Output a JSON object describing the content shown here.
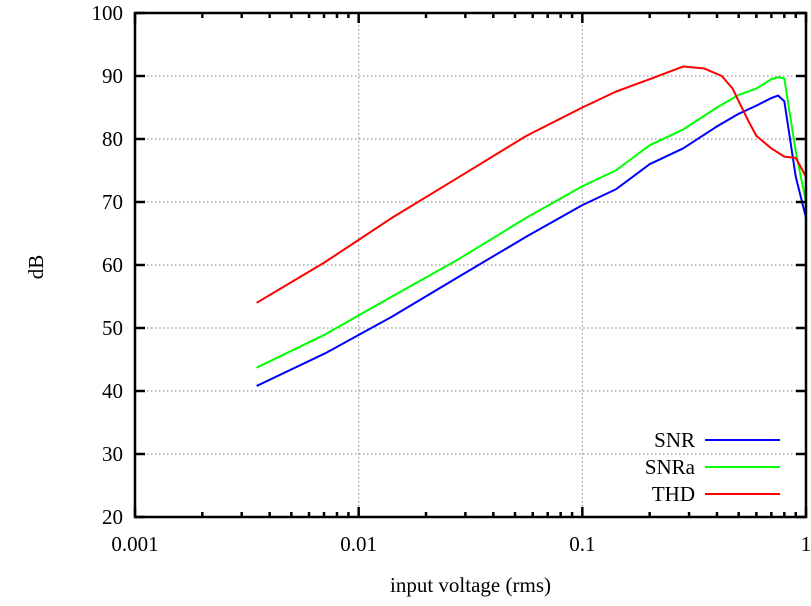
{
  "chart_data": {
    "type": "line",
    "title": "",
    "xlabel": "input voltage (rms)",
    "ylabel": "dB",
    "xscale": "log",
    "xlim": [
      0.001,
      1
    ],
    "ylim": [
      20,
      100
    ],
    "x_ticks": [
      {
        "value": 0.001,
        "label": "0.001"
      },
      {
        "value": 0.01,
        "label": "0.01"
      },
      {
        "value": 0.1,
        "label": "0.1"
      },
      {
        "value": 1,
        "label": "1"
      }
    ],
    "y_ticks": [
      {
        "value": 20,
        "label": "20"
      },
      {
        "value": 30,
        "label": "30"
      },
      {
        "value": 40,
        "label": "40"
      },
      {
        "value": 50,
        "label": "50"
      },
      {
        "value": 60,
        "label": "60"
      },
      {
        "value": 70,
        "label": "70"
      },
      {
        "value": 80,
        "label": "80"
      },
      {
        "value": 90,
        "label": "90"
      },
      {
        "value": 100,
        "label": "100"
      }
    ],
    "grid": true,
    "legend_position": "bottom-right",
    "series": [
      {
        "name": "SNR",
        "color": "#0000ff",
        "x": [
          0.0035,
          0.0071,
          0.0141,
          0.0282,
          0.0562,
          0.1,
          0.141,
          0.2,
          0.282,
          0.4,
          0.5,
          0.6,
          0.7,
          0.75,
          0.8,
          0.9,
          1.0
        ],
        "y": [
          40.8,
          46.0,
          51.8,
          58.2,
          64.5,
          69.5,
          72.0,
          76.0,
          78.5,
          82.0,
          84.0,
          85.3,
          86.5,
          86.9,
          86.0,
          74.0,
          67.5
        ]
      },
      {
        "name": "SNRa",
        "color": "#00ff00",
        "x": [
          0.0035,
          0.0071,
          0.0141,
          0.0282,
          0.0562,
          0.1,
          0.141,
          0.2,
          0.282,
          0.4,
          0.5,
          0.6,
          0.7,
          0.75,
          0.8,
          0.9,
          1.0
        ],
        "y": [
          43.7,
          49.0,
          55.0,
          61.0,
          67.5,
          72.5,
          75.0,
          79.0,
          81.5,
          85.0,
          87.0,
          88.0,
          89.5,
          89.8,
          89.6,
          78.0,
          70.0
        ]
      },
      {
        "name": "THD",
        "color": "#ff0000",
        "x": [
          0.0035,
          0.0071,
          0.0141,
          0.0282,
          0.0562,
          0.1,
          0.141,
          0.2,
          0.282,
          0.35,
          0.42,
          0.47,
          0.5,
          0.55,
          0.6,
          0.7,
          0.8,
          0.9,
          1.0
        ],
        "y": [
          54.0,
          60.5,
          67.5,
          74.0,
          80.5,
          85.0,
          87.5,
          89.5,
          91.5,
          91.2,
          90.0,
          88.0,
          86.0,
          83.0,
          80.5,
          78.5,
          77.2,
          77.0,
          74.0
        ]
      }
    ]
  }
}
